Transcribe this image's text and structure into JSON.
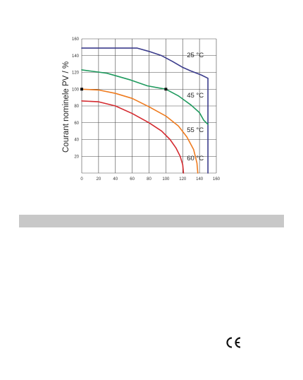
{
  "chart_data": {
    "type": "line",
    "ylabel": "Courant nominele PV / %",
    "xlabel": "",
    "xlim": [
      0,
      160
    ],
    "ylim": [
      0,
      160
    ],
    "x_ticks": [
      "0",
      "20",
      "40",
      "60",
      "80",
      "100",
      "120",
      "140",
      "160"
    ],
    "y_ticks": [
      "20",
      "40",
      "60",
      "80",
      "100",
      "120",
      "140",
      "160"
    ],
    "grid": true,
    "series": [
      {
        "name": "25 °C",
        "color": "#3b3c8c",
        "points": [
          [
            0,
            149
          ],
          [
            66,
            149
          ],
          [
            80,
            145
          ],
          [
            95,
            140
          ],
          [
            108,
            133
          ],
          [
            120,
            126
          ],
          [
            129,
            122
          ],
          [
            142,
            117
          ],
          [
            150,
            113
          ],
          [
            150,
            0
          ]
        ]
      },
      {
        "name": "45 °C",
        "color": "#1f9a5e",
        "points": [
          [
            0,
            123
          ],
          [
            30,
            119
          ],
          [
            58,
            111
          ],
          [
            78,
            104
          ],
          [
            100,
            100
          ],
          [
            115,
            92
          ],
          [
            130,
            81
          ],
          [
            140,
            72
          ],
          [
            145,
            63
          ],
          [
            150,
            58
          ]
        ]
      },
      {
        "name": "55 °C",
        "color": "#ee7b1f",
        "points": [
          [
            0,
            100
          ],
          [
            20,
            99
          ],
          [
            40,
            95
          ],
          [
            60,
            89
          ],
          [
            80,
            79
          ],
          [
            100,
            68
          ],
          [
            115,
            56
          ],
          [
            125,
            43
          ],
          [
            133,
            28
          ],
          [
            137,
            12
          ],
          [
            138,
            0
          ]
        ]
      },
      {
        "name": "60 °C",
        "color": "#d42a2f",
        "points": [
          [
            0,
            86
          ],
          [
            20,
            85
          ],
          [
            40,
            80
          ],
          [
            60,
            71
          ],
          [
            80,
            60
          ],
          [
            95,
            50
          ],
          [
            105,
            40
          ],
          [
            112,
            30
          ],
          [
            117,
            20
          ],
          [
            120,
            10
          ],
          [
            121,
            0
          ]
        ]
      }
    ],
    "markers": [
      [
        0,
        100
      ],
      [
        100,
        100
      ]
    ]
  },
  "decor": {
    "footer_icon": "ce-mark"
  }
}
